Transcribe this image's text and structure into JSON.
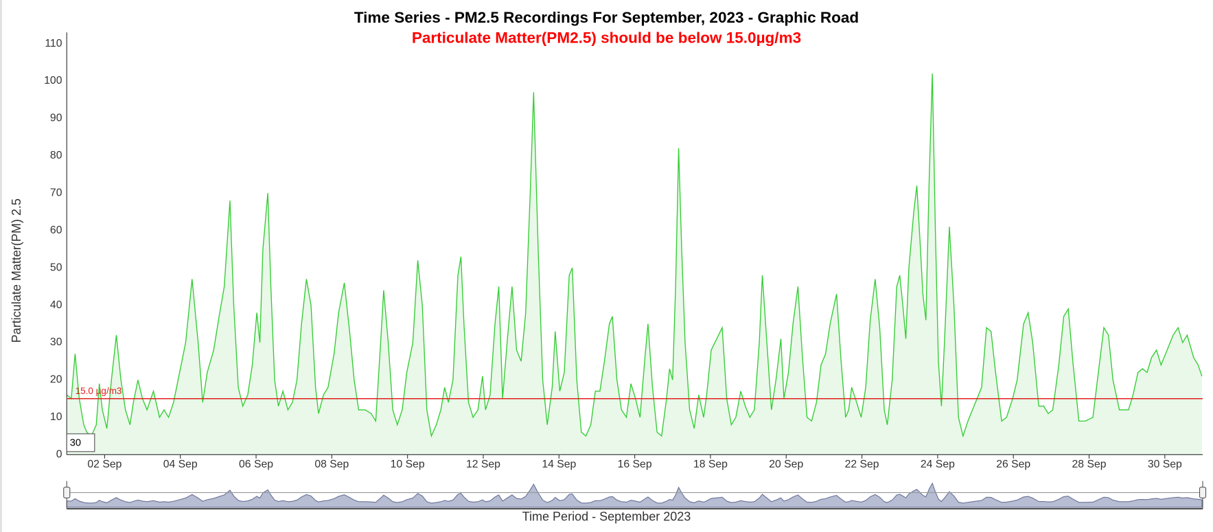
{
  "chart_data": {
    "type": "area",
    "title": "Time Series - PM2.5 Recordings For September, 2023 - Graphic Road",
    "subtitle": "Particulate Matter(PM2.5) should be below 15.0µg/m3",
    "y_label": "Particulate Matter(PM) 2.5",
    "navigator_label": "Time Period - September 2023",
    "zoom_box": "30",
    "threshold": {
      "value": 15,
      "label": "15.0 µg/m3",
      "color": "#e02020"
    },
    "color": "#33cc33",
    "fill": "#e9f8e9",
    "grid": false,
    "xlim": [
      1,
      31
    ],
    "ylim": [
      0,
      113
    ],
    "yticks": [
      0,
      10,
      20,
      30,
      40,
      50,
      60,
      70,
      80,
      90,
      100,
      110
    ],
    "xticks": [
      {
        "value": 2,
        "label": "02 Sep"
      },
      {
        "value": 4,
        "label": "04 Sep"
      },
      {
        "value": 6,
        "label": "06 Sep"
      },
      {
        "value": 8,
        "label": "08 Sep"
      },
      {
        "value": 10,
        "label": "10 Sep"
      },
      {
        "value": 12,
        "label": "12 Sep"
      },
      {
        "value": 14,
        "label": "14 Sep"
      },
      {
        "value": 16,
        "label": "16 Sep"
      },
      {
        "value": 18,
        "label": "18 Sep"
      },
      {
        "value": 20,
        "label": "20 Sep"
      },
      {
        "value": 22,
        "label": "22 Sep"
      },
      {
        "value": 24,
        "label": "24 Sep"
      },
      {
        "value": 26,
        "label": "26 Sep"
      },
      {
        "value": 28,
        "label": "28 Sep"
      },
      {
        "value": 30,
        "label": "30 Sep"
      }
    ],
    "x": [
      1.0,
      1.12,
      1.22,
      1.33,
      1.45,
      1.53,
      1.65,
      1.78,
      1.86,
      1.94,
      2.06,
      2.18,
      2.31,
      2.43,
      2.55,
      2.67,
      2.76,
      2.88,
      3.0,
      3.12,
      3.29,
      3.45,
      3.57,
      3.69,
      3.82,
      3.98,
      4.14,
      4.31,
      4.47,
      4.59,
      4.71,
      4.88,
      5.04,
      5.16,
      5.31,
      5.41,
      5.53,
      5.65,
      5.78,
      5.9,
      6.02,
      6.1,
      6.18,
      6.31,
      6.39,
      6.49,
      6.59,
      6.71,
      6.84,
      6.96,
      7.08,
      7.2,
      7.33,
      7.45,
      7.57,
      7.65,
      7.78,
      7.9,
      8.06,
      8.18,
      8.33,
      8.47,
      8.59,
      8.71,
      8.88,
      9.04,
      9.16,
      9.29,
      9.37,
      9.49,
      9.61,
      9.73,
      9.86,
      9.98,
      10.14,
      10.27,
      10.39,
      10.51,
      10.63,
      10.76,
      10.88,
      10.98,
      11.08,
      11.2,
      11.33,
      11.41,
      11.49,
      11.61,
      11.73,
      11.86,
      11.98,
      12.06,
      12.18,
      12.31,
      12.41,
      12.51,
      12.63,
      12.76,
      12.88,
      13.0,
      13.12,
      13.24,
      13.33,
      13.45,
      13.57,
      13.69,
      13.82,
      13.9,
      14.02,
      14.14,
      14.27,
      14.35,
      14.47,
      14.59,
      14.71,
      14.84,
      14.96,
      15.08,
      15.2,
      15.33,
      15.41,
      15.53,
      15.65,
      15.78,
      15.9,
      16.02,
      16.14,
      16.27,
      16.35,
      16.47,
      16.59,
      16.71,
      16.84,
      16.92,
      17.0,
      17.08,
      17.16,
      17.24,
      17.33,
      17.45,
      17.57,
      17.69,
      17.82,
      17.9,
      18.02,
      18.31,
      18.43,
      18.55,
      18.67,
      18.8,
      18.92,
      19.04,
      19.16,
      19.29,
      19.37,
      19.49,
      19.61,
      19.73,
      19.86,
      19.94,
      20.06,
      20.18,
      20.31,
      20.43,
      20.55,
      20.67,
      20.8,
      20.92,
      21.04,
      21.16,
      21.33,
      21.45,
      21.57,
      21.65,
      21.73,
      21.86,
      21.98,
      22.1,
      22.22,
      22.35,
      22.47,
      22.59,
      22.67,
      22.8,
      22.92,
      23.0,
      23.08,
      23.16,
      23.24,
      23.37,
      23.45,
      23.53,
      23.61,
      23.69,
      23.78,
      23.86,
      23.94,
      24.02,
      24.1,
      24.18,
      24.31,
      24.43,
      24.55,
      24.67,
      24.8,
      24.92,
      25.04,
      25.16,
      25.29,
      25.41,
      25.53,
      25.69,
      25.82,
      25.98,
      26.1,
      26.27,
      26.39,
      26.51,
      26.67,
      26.8,
      26.92,
      27.04,
      27.2,
      27.33,
      27.45,
      27.57,
      27.73,
      27.9,
      28.1,
      28.22,
      28.39,
      28.51,
      28.63,
      28.8,
      29.04,
      29.16,
      29.29,
      29.41,
      29.53,
      29.65,
      29.78,
      29.9,
      30.06,
      30.22,
      30.35,
      30.47,
      30.59,
      30.76,
      30.88,
      30.98
    ],
    "values": [
      16,
      15,
      27,
      15,
      8,
      6,
      5,
      8,
      19,
      12,
      7,
      20,
      32,
      20,
      12,
      8,
      14,
      20,
      15,
      12,
      17,
      10,
      12,
      10,
      14,
      22,
      30,
      47,
      30,
      14,
      22,
      28,
      38,
      45,
      68,
      40,
      18,
      13,
      16,
      24,
      38,
      30,
      55,
      70,
      45,
      20,
      13,
      17,
      12,
      14,
      20,
      35,
      47,
      40,
      18,
      11,
      16,
      18,
      27,
      38,
      46,
      33,
      20,
      12,
      12,
      11,
      9,
      30,
      44,
      30,
      12,
      8,
      12,
      22,
      30,
      52,
      40,
      12,
      5,
      8,
      12,
      18,
      14,
      20,
      48,
      53,
      35,
      14,
      10,
      12,
      21,
      12,
      16,
      35,
      45,
      15,
      30,
      45,
      28,
      25,
      38,
      70,
      97,
      55,
      20,
      8,
      18,
      33,
      17,
      22,
      48,
      50,
      20,
      6,
      5,
      8,
      17,
      17,
      25,
      35,
      37,
      20,
      12,
      10,
      19,
      15,
      10,
      26,
      35,
      18,
      6,
      5,
      15,
      23,
      20,
      45,
      82,
      55,
      30,
      12,
      7,
      16,
      10,
      16,
      28,
      34,
      15,
      8,
      10,
      17,
      13,
      10,
      12,
      30,
      48,
      30,
      12,
      20,
      31,
      15,
      22,
      35,
      45,
      26,
      10,
      9,
      14,
      24,
      27,
      35,
      43,
      25,
      10,
      12,
      18,
      14,
      10,
      18,
      36,
      47,
      34,
      12,
      8,
      20,
      45,
      48,
      40,
      31,
      50,
      65,
      72,
      58,
      43,
      36,
      75,
      102,
      60,
      25,
      13,
      30,
      61,
      40,
      10,
      5,
      9,
      12,
      15,
      18,
      34,
      33,
      22,
      9,
      10,
      15,
      20,
      35,
      38,
      30,
      13,
      13,
      11,
      12,
      24,
      37,
      39,
      25,
      9,
      9,
      10,
      20,
      34,
      32,
      20,
      12,
      12,
      16,
      22,
      23,
      22,
      26,
      28,
      24,
      28,
      32,
      34,
      30,
      32,
      26,
      24,
      21
    ]
  }
}
